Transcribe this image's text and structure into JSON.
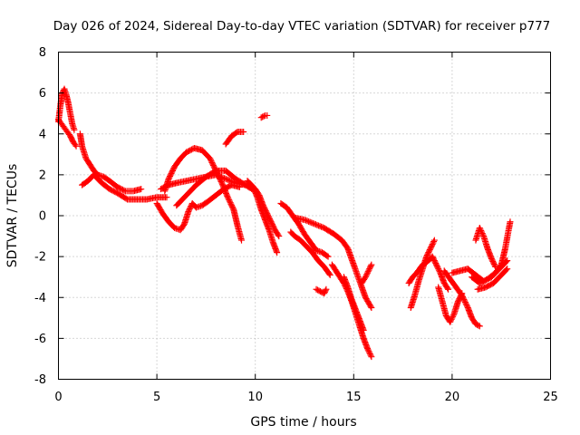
{
  "chart_data": {
    "type": "scatter",
    "title": "Day 026 of 2024, Sidereal Day-to-day VTEC variation (SDTVAR) for receiver p777",
    "xlabel": "GPS time / hours",
    "ylabel": "SDTVAR / TECUs",
    "xlim": [
      0,
      25
    ],
    "ylim": [
      -8,
      8
    ],
    "xticks": [
      0,
      5,
      10,
      15,
      20,
      25
    ],
    "yticks": [
      -8,
      -6,
      -4,
      -2,
      0,
      2,
      4,
      6,
      8
    ],
    "grid": true,
    "marker": "+",
    "series": [
      {
        "name": "SDTVAR",
        "color": "#ff0000",
        "segments": [
          [
            [
              0.0,
              4.6
            ],
            [
              0.1,
              5.4
            ],
            [
              0.2,
              6.0
            ],
            [
              0.3,
              6.2
            ],
            [
              0.4,
              5.9
            ],
            [
              0.5,
              5.5
            ],
            [
              0.6,
              5.0
            ],
            [
              0.7,
              4.5
            ],
            [
              0.8,
              4.2
            ]
          ],
          [
            [
              0.0,
              4.7
            ],
            [
              0.15,
              4.5
            ],
            [
              0.3,
              4.3
            ],
            [
              0.45,
              4.1
            ],
            [
              0.6,
              3.9
            ],
            [
              0.75,
              3.6
            ],
            [
              0.9,
              3.4
            ]
          ],
          [
            [
              1.1,
              4.0
            ],
            [
              1.2,
              3.4
            ],
            [
              1.4,
              2.8
            ],
            [
              1.6,
              2.5
            ],
            [
              1.8,
              2.2
            ],
            [
              2.0,
              2.0
            ],
            [
              2.3,
              1.9
            ],
            [
              2.6,
              1.7
            ],
            [
              3.0,
              1.4
            ],
            [
              3.4,
              1.2
            ],
            [
              3.8,
              1.2
            ],
            [
              4.2,
              1.3
            ]
          ],
          [
            [
              1.2,
              1.5
            ],
            [
              1.5,
              1.7
            ],
            [
              1.8,
              2.0
            ],
            [
              2.2,
              1.6
            ],
            [
              2.6,
              1.3
            ],
            [
              3.0,
              1.1
            ],
            [
              3.5,
              0.8
            ],
            [
              4.0,
              0.8
            ],
            [
              4.5,
              0.8
            ],
            [
              5.0,
              0.9
            ],
            [
              5.5,
              0.9
            ]
          ],
          [
            [
              5.0,
              0.6
            ],
            [
              5.3,
              0.1
            ],
            [
              5.6,
              -0.3
            ],
            [
              5.9,
              -0.6
            ],
            [
              6.2,
              -0.7
            ],
            [
              6.4,
              -0.4
            ],
            [
              6.6,
              0.2
            ],
            [
              6.8,
              0.6
            ],
            [
              7.0,
              0.4
            ],
            [
              7.3,
              0.5
            ],
            [
              7.6,
              0.7
            ],
            [
              8.0,
              1.0
            ],
            [
              8.4,
              1.3
            ],
            [
              8.8,
              1.5
            ],
            [
              9.2,
              1.4
            ]
          ],
          [
            [
              5.4,
              1.2
            ],
            [
              5.6,
              1.8
            ],
            [
              5.9,
              2.4
            ],
            [
              6.2,
              2.8
            ],
            [
              6.5,
              3.1
            ],
            [
              6.9,
              3.3
            ],
            [
              7.3,
              3.2
            ],
            [
              7.7,
              2.8
            ],
            [
              8.0,
              2.2
            ],
            [
              8.3,
              1.6
            ],
            [
              8.6,
              0.9
            ],
            [
              8.9,
              0.3
            ],
            [
              9.1,
              -0.5
            ],
            [
              9.3,
              -1.2
            ]
          ],
          [
            [
              5.2,
              1.3
            ],
            [
              5.6,
              1.5
            ],
            [
              6.0,
              1.6
            ],
            [
              6.5,
              1.7
            ],
            [
              7.0,
              1.8
            ],
            [
              7.5,
              1.9
            ],
            [
              8.0,
              2.0
            ],
            [
              8.5,
              1.8
            ],
            [
              9.0,
              1.6
            ],
            [
              9.5,
              1.5
            ]
          ],
          [
            [
              6.0,
              0.5
            ],
            [
              6.5,
              1.0
            ],
            [
              7.0,
              1.5
            ],
            [
              7.5,
              1.9
            ],
            [
              8.0,
              2.2
            ],
            [
              8.5,
              2.2
            ],
            [
              9.0,
              1.8
            ],
            [
              9.5,
              1.5
            ],
            [
              10.0,
              1.2
            ]
          ],
          [
            [
              8.5,
              3.5
            ],
            [
              8.8,
              3.9
            ],
            [
              9.1,
              4.1
            ],
            [
              9.4,
              4.1
            ]
          ],
          [
            [
              10.3,
              4.8
            ],
            [
              10.5,
              4.9
            ],
            [
              10.6,
              4.9
            ]
          ],
          [
            [
              9.6,
              1.7
            ],
            [
              9.8,
              1.5
            ],
            [
              10.0,
              1.3
            ],
            [
              10.2,
              1.0
            ],
            [
              10.4,
              0.5
            ],
            [
              10.6,
              0.1
            ],
            [
              10.8,
              -0.3
            ],
            [
              11.0,
              -0.7
            ],
            [
              11.2,
              -1.0
            ]
          ],
          [
            [
              9.9,
              1.4
            ],
            [
              10.1,
              0.9
            ],
            [
              10.3,
              0.3
            ],
            [
              10.5,
              -0.2
            ],
            [
              10.7,
              -0.7
            ],
            [
              10.9,
              -1.3
            ],
            [
              11.1,
              -1.8
            ]
          ],
          [
            [
              11.3,
              0.6
            ],
            [
              11.6,
              0.4
            ],
            [
              11.9,
              0.0
            ],
            [
              12.2,
              -0.4
            ],
            [
              12.5,
              -0.9
            ],
            [
              12.8,
              -1.3
            ],
            [
              13.1,
              -1.7
            ],
            [
              13.4,
              -1.8
            ],
            [
              13.7,
              -2.0
            ]
          ],
          [
            [
              11.8,
              -0.8
            ],
            [
              12.0,
              -1.0
            ],
            [
              12.3,
              -1.2
            ],
            [
              12.6,
              -1.5
            ],
            [
              12.9,
              -1.8
            ],
            [
              13.2,
              -2.2
            ],
            [
              13.5,
              -2.5
            ],
            [
              13.8,
              -2.9
            ]
          ],
          [
            [
              12.0,
              -0.1
            ],
            [
              12.5,
              -0.2
            ],
            [
              13.0,
              -0.4
            ],
            [
              13.5,
              -0.6
            ],
            [
              14.0,
              -0.9
            ],
            [
              14.4,
              -1.2
            ],
            [
              14.7,
              -1.6
            ],
            [
              15.0,
              -2.4
            ],
            [
              15.3,
              -3.2
            ],
            [
              15.6,
              -4.0
            ],
            [
              15.9,
              -4.5
            ]
          ],
          [
            [
              13.1,
              -3.6
            ],
            [
              13.3,
              -3.7
            ],
            [
              13.5,
              -3.8
            ],
            [
              13.6,
              -3.6
            ]
          ],
          [
            [
              13.9,
              -2.4
            ],
            [
              14.1,
              -2.7
            ],
            [
              14.3,
              -3.0
            ],
            [
              14.5,
              -3.3
            ],
            [
              14.7,
              -3.7
            ],
            [
              14.9,
              -4.2
            ],
            [
              15.1,
              -4.8
            ],
            [
              15.3,
              -5.4
            ],
            [
              15.5,
              -6.0
            ],
            [
              15.7,
              -6.5
            ],
            [
              15.9,
              -6.9
            ]
          ],
          [
            [
              14.5,
              -3.0
            ],
            [
              14.7,
              -3.5
            ],
            [
              14.9,
              -4.1
            ],
            [
              15.1,
              -4.6
            ],
            [
              15.3,
              -5.1
            ],
            [
              15.5,
              -5.6
            ]
          ],
          [
            [
              15.4,
              -3.3
            ],
            [
              15.6,
              -3.0
            ],
            [
              15.8,
              -2.6
            ],
            [
              15.9,
              -2.4
            ]
          ],
          [
            [
              17.8,
              -3.3
            ],
            [
              18.0,
              -3.0
            ],
            [
              18.2,
              -2.8
            ],
            [
              18.5,
              -2.4
            ],
            [
              18.8,
              -2.2
            ],
            [
              19.0,
              -2.0
            ],
            [
              19.2,
              -2.4
            ],
            [
              19.4,
              -2.8
            ],
            [
              19.6,
              -3.3
            ],
            [
              19.8,
              -3.6
            ]
          ],
          [
            [
              17.9,
              -4.5
            ],
            [
              18.1,
              -3.9
            ],
            [
              18.3,
              -3.2
            ],
            [
              18.5,
              -2.6
            ],
            [
              18.7,
              -2.0
            ],
            [
              18.9,
              -1.6
            ],
            [
              19.1,
              -1.2
            ]
          ],
          [
            [
              19.3,
              -3.5
            ],
            [
              19.5,
              -4.2
            ],
            [
              19.7,
              -4.9
            ],
            [
              19.9,
              -5.2
            ],
            [
              20.1,
              -4.8
            ],
            [
              20.3,
              -4.2
            ],
            [
              20.5,
              -3.8
            ]
          ],
          [
            [
              19.6,
              -2.7
            ],
            [
              19.9,
              -3.1
            ],
            [
              20.2,
              -3.5
            ],
            [
              20.5,
              -3.9
            ],
            [
              20.8,
              -4.5
            ],
            [
              21.0,
              -5.0
            ],
            [
              21.2,
              -5.3
            ],
            [
              21.4,
              -5.4
            ]
          ],
          [
            [
              20.0,
              -2.8
            ],
            [
              20.4,
              -2.7
            ],
            [
              20.8,
              -2.6
            ],
            [
              21.2,
              -2.9
            ],
            [
              21.6,
              -3.2
            ],
            [
              22.0,
              -3.0
            ],
            [
              22.4,
              -2.6
            ],
            [
              22.8,
              -2.2
            ]
          ],
          [
            [
              21.2,
              -1.2
            ],
            [
              21.4,
              -0.6
            ],
            [
              21.6,
              -1.0
            ],
            [
              21.8,
              -1.6
            ],
            [
              22.0,
              -2.1
            ],
            [
              22.2,
              -2.5
            ]
          ],
          [
            [
              21.0,
              -3.0
            ],
            [
              21.4,
              -3.3
            ],
            [
              21.8,
              -3.1
            ],
            [
              22.2,
              -2.8
            ],
            [
              22.5,
              -2.4
            ],
            [
              22.7,
              -1.6
            ],
            [
              22.85,
              -0.8
            ],
            [
              22.95,
              -0.3
            ]
          ],
          [
            [
              21.3,
              -3.6
            ],
            [
              21.7,
              -3.5
            ],
            [
              22.1,
              -3.3
            ],
            [
              22.5,
              -2.9
            ],
            [
              22.8,
              -2.6
            ]
          ]
        ]
      }
    ]
  }
}
